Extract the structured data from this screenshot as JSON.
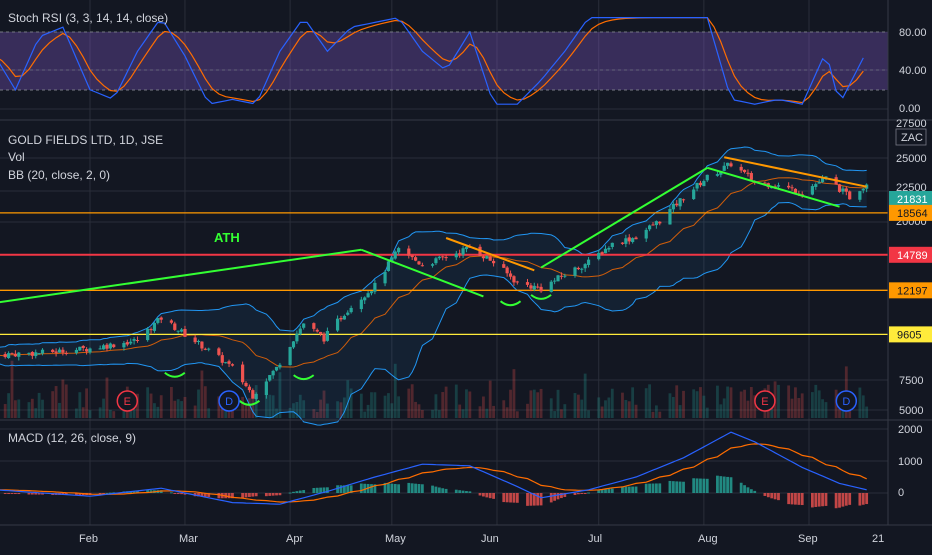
{
  "colors": {
    "background": "#131722",
    "grid": "#2a2e39",
    "axis_text": "#d1d4dc",
    "up": "#26a69a",
    "down": "#ef5350",
    "stoch_k": "#2962ff",
    "stoch_d": "#ff6d00",
    "stoch_band": "#7e57c2",
    "bb_band": "#2196f3",
    "bb_basis": "#ff6d00",
    "macd_line": "#2962ff",
    "signal_line": "#ff6d00",
    "trend_green": "#33ff33",
    "trend_orange": "#ff9800",
    "level_orange": "#ff9800",
    "level_red": "#f23645",
    "level_yellow": "#ffeb3b",
    "label_orange": "#ff9800",
    "label_red": "#f23645",
    "label_yellow": "#ffeb3b",
    "event_red": "#f23645",
    "event_blue": "#2962ff"
  },
  "stoch_panel": {
    "title": "Stoch RSI (3, 3, 14, 14, close)",
    "axis_labels": [
      "80.00",
      "40.00",
      "0.00"
    ],
    "upper_band": 80,
    "lower_band": 20
  },
  "price_panel": {
    "title": "GOLD FIELDS LTD, 1D, JSE",
    "vol_label": "Vol",
    "bb_label": "BB (20, close, 2, 0)",
    "currency": "ZAC",
    "axis_labels": [
      "27500",
      "25000",
      "22500",
      "20000",
      "17500",
      "7500",
      "5000"
    ],
    "current_price": "21831",
    "ath_text": "ATH",
    "levels": [
      {
        "value": 18564,
        "label": "18564",
        "color": "orange"
      },
      {
        "value": 14789,
        "label": "14789",
        "color": "red"
      },
      {
        "value": 12197,
        "label": "12197",
        "color": "orange"
      },
      {
        "value": 9605,
        "label": "9605",
        "color": "yellow"
      }
    ],
    "events": [
      {
        "letter": "E",
        "date": "2019-02-12",
        "color": "red"
      },
      {
        "letter": "D",
        "date": "2019-03-14",
        "color": "blue"
      },
      {
        "letter": "E",
        "date": "2019-08-19",
        "color": "red"
      },
      {
        "letter": "D",
        "date": "2019-09-12",
        "color": "blue"
      }
    ]
  },
  "macd_panel": {
    "title": "MACD (12, 26, close, 9)",
    "axis_labels": [
      "2000",
      "1000",
      "0"
    ]
  },
  "time_axis": {
    "labels": [
      "Feb",
      "Mar",
      "Apr",
      "May",
      "Jun",
      "Jul",
      "Aug",
      "Sep",
      "21"
    ]
  },
  "chart_data": {
    "type": "candlestick",
    "title": "GOLD FIELDS LTD, 1D, JSE",
    "x_range": [
      "2019-01-04",
      "2019-09-18"
    ],
    "price_ylim": [
      5000,
      27500
    ],
    "price_path": [
      [
        "2019-01-04",
        8600
      ],
      [
        "2019-01-18",
        8700
      ],
      [
        "2019-02-01",
        8900
      ],
      [
        "2019-02-15",
        9300
      ],
      [
        "2019-02-22",
        10500
      ],
      [
        "2019-03-01",
        9600
      ],
      [
        "2019-03-15",
        8000
      ],
      [
        "2019-03-21",
        6900
      ],
      [
        "2019-03-28",
        8000
      ],
      [
        "2019-04-05",
        10200
      ],
      [
        "2019-04-11",
        9400
      ],
      [
        "2019-04-18",
        11000
      ],
      [
        "2019-04-26",
        12500
      ],
      [
        "2019-05-03",
        15200
      ],
      [
        "2019-05-10",
        14000
      ],
      [
        "2019-05-17",
        14600
      ],
      [
        "2019-05-24",
        15400
      ],
      [
        "2019-05-31",
        14200
      ],
      [
        "2019-06-07",
        12700
      ],
      [
        "2019-06-14",
        12300
      ],
      [
        "2019-06-21",
        13300
      ],
      [
        "2019-06-28",
        14200
      ],
      [
        "2019-07-05",
        15700
      ],
      [
        "2019-07-12",
        16300
      ],
      [
        "2019-07-19",
        17800
      ],
      [
        "2019-07-26",
        20200
      ],
      [
        "2019-08-02",
        22500
      ],
      [
        "2019-08-09",
        24200
      ],
      [
        "2019-08-16",
        22000
      ],
      [
        "2019-08-23",
        21500
      ],
      [
        "2019-08-30",
        20800
      ],
      [
        "2019-09-06",
        22400
      ],
      [
        "2019-09-13",
        20200
      ],
      [
        "2019-09-18",
        21831
      ]
    ],
    "stoch_rsi_k": [
      [
        "2019-01-04",
        55
      ],
      [
        "2019-01-10",
        20
      ],
      [
        "2019-01-17",
        75
      ],
      [
        "2019-01-24",
        85
      ],
      [
        "2019-02-01",
        20
      ],
      [
        "2019-02-08",
        10
      ],
      [
        "2019-02-15",
        60
      ],
      [
        "2019-02-22",
        95
      ],
      [
        "2019-03-01",
        55
      ],
      [
        "2019-03-08",
        5
      ],
      [
        "2019-03-15",
        10
      ],
      [
        "2019-03-22",
        5
      ],
      [
        "2019-03-29",
        60
      ],
      [
        "2019-04-05",
        95
      ],
      [
        "2019-04-12",
        60
      ],
      [
        "2019-04-19",
        85
      ],
      [
        "2019-04-26",
        90
      ],
      [
        "2019-05-03",
        95
      ],
      [
        "2019-05-10",
        60
      ],
      [
        "2019-05-17",
        40
      ],
      [
        "2019-05-24",
        80
      ],
      [
        "2019-05-31",
        5
      ],
      [
        "2019-06-07",
        5
      ],
      [
        "2019-06-14",
        30
      ],
      [
        "2019-06-21",
        60
      ],
      [
        "2019-06-28",
        95
      ],
      [
        "2019-07-05",
        95
      ],
      [
        "2019-07-12",
        95
      ],
      [
        "2019-07-19",
        95
      ],
      [
        "2019-07-26",
        95
      ],
      [
        "2019-08-02",
        95
      ],
      [
        "2019-08-09",
        10
      ],
      [
        "2019-08-16",
        5
      ],
      [
        "2019-08-23",
        10
      ],
      [
        "2019-08-30",
        5
      ],
      [
        "2019-09-06",
        60
      ],
      [
        "2019-09-10",
        5
      ],
      [
        "2019-09-18",
        60
      ]
    ],
    "macd": [
      [
        "2019-01-04",
        100
      ],
      [
        "2019-02-01",
        -100
      ],
      [
        "2019-02-22",
        150
      ],
      [
        "2019-03-15",
        -300
      ],
      [
        "2019-03-29",
        -350
      ],
      [
        "2019-04-12",
        50
      ],
      [
        "2019-04-26",
        500
      ],
      [
        "2019-05-10",
        900
      ],
      [
        "2019-05-24",
        850
      ],
      [
        "2019-06-07",
        200
      ],
      [
        "2019-06-14",
        -150
      ],
      [
        "2019-06-28",
        100
      ],
      [
        "2019-07-12",
        500
      ],
      [
        "2019-07-26",
        1100
      ],
      [
        "2019-08-09",
        1900
      ],
      [
        "2019-08-16",
        1600
      ],
      [
        "2019-08-30",
        800
      ],
      [
        "2019-09-10",
        300
      ],
      [
        "2019-09-18",
        100
      ]
    ],
    "macd_ylim": [
      -700,
      2100
    ],
    "stoch_ylim": [
      0,
      100
    ],
    "trendlines": [
      {
        "color": "green",
        "from": [
          "2019-01-04",
          11400
        ],
        "to": [
          "2019-04-22",
          15200
        ]
      },
      {
        "color": "green",
        "from": [
          "2019-04-22",
          15200
        ],
        "to": [
          "2019-05-28",
          11800
        ]
      },
      {
        "color": "orange",
        "from": [
          "2019-05-17",
          16200
        ],
        "to": [
          "2019-06-12",
          13600
        ]
      },
      {
        "color": "green",
        "from": [
          "2019-06-14",
          13800
        ],
        "to": [
          "2019-08-02",
          23700
        ]
      },
      {
        "color": "green",
        "from": [
          "2019-08-02",
          23700
        ],
        "to": [
          "2019-09-10",
          19200
        ]
      },
      {
        "color": "orange",
        "from": [
          "2019-08-07",
          25100
        ],
        "to": [
          "2019-09-18",
          21400
        ]
      }
    ]
  }
}
